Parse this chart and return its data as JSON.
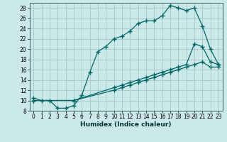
{
  "xlabel": "Humidex (Indice chaleur)",
  "background_color": "#cce9e9",
  "grid_color": "#aacccc",
  "line_color": "#006666",
  "xlim": [
    -0.5,
    23.5
  ],
  "ylim": [
    8,
    29
  ],
  "yticks": [
    8,
    10,
    12,
    14,
    16,
    18,
    20,
    22,
    24,
    26,
    28
  ],
  "xticks": [
    0,
    1,
    2,
    3,
    4,
    5,
    6,
    7,
    8,
    9,
    10,
    11,
    12,
    13,
    14,
    15,
    16,
    17,
    18,
    19,
    20,
    21,
    22,
    23
  ],
  "curve1_x": [
    0,
    1,
    2,
    3,
    4,
    5,
    6,
    7,
    8,
    9,
    10,
    11,
    12,
    13,
    14,
    15,
    16,
    17,
    18,
    19,
    20,
    21,
    22,
    23
  ],
  "curve1_y": [
    10.5,
    10.0,
    10.0,
    8.5,
    8.5,
    9.0,
    11.0,
    15.5,
    19.5,
    20.5,
    22.0,
    22.5,
    23.5,
    25.0,
    25.5,
    25.5,
    26.5,
    28.5,
    28.0,
    27.5,
    28.0,
    24.5,
    20.0,
    17.0
  ],
  "curve2_x": [
    0,
    5,
    10,
    11,
    12,
    13,
    14,
    15,
    16,
    17,
    18,
    19,
    20,
    21,
    22,
    23
  ],
  "curve2_y": [
    10.0,
    10.0,
    12.5,
    13.0,
    13.5,
    14.0,
    14.5,
    15.0,
    15.5,
    16.0,
    16.5,
    17.0,
    21.0,
    20.5,
    17.5,
    17.0
  ],
  "curve3_x": [
    0,
    5,
    10,
    11,
    12,
    13,
    14,
    15,
    16,
    17,
    18,
    19,
    20,
    21,
    22,
    23
  ],
  "curve3_y": [
    10.0,
    10.0,
    12.0,
    12.5,
    13.0,
    13.5,
    14.0,
    14.5,
    15.0,
    15.5,
    16.0,
    16.5,
    17.0,
    17.5,
    16.5,
    16.5
  ],
  "xlabel_fontsize": 6.5,
  "tick_fontsize": 5.5
}
